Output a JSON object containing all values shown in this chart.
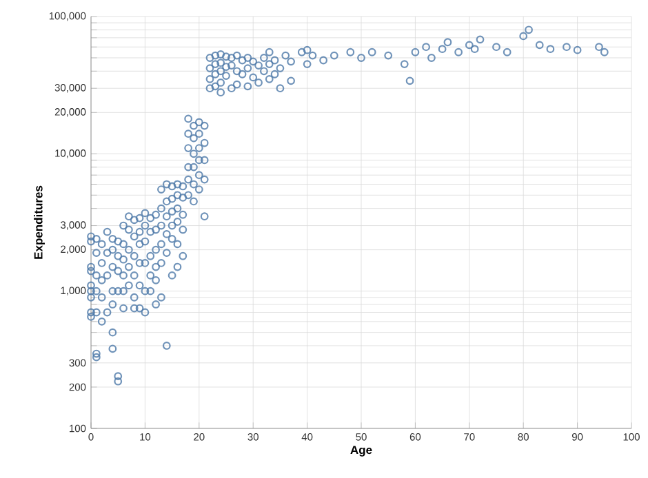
{
  "chart_data": {
    "type": "scatter",
    "xlabel": "Age",
    "ylabel": "Expenditures",
    "log": "y",
    "grid": true,
    "marker": "circle",
    "color": "#4c78a8",
    "xlim": [
      0,
      100
    ],
    "xticks": [
      0,
      10,
      20,
      30,
      40,
      50,
      60,
      70,
      80,
      90,
      100
    ],
    "ylim": [
      100,
      100000
    ],
    "yticks": [
      100,
      200,
      300,
      {
        "value": 400,
        "label": null
      },
      {
        "value": 500,
        "label": null
      },
      {
        "value": 600,
        "label": null
      },
      {
        "value": 700,
        "label": null
      },
      {
        "value": 800,
        "label": null
      },
      {
        "value": 900,
        "label": null
      },
      {
        "value": 1000,
        "label": "1,000"
      },
      {
        "value": 2000,
        "label": "2,000"
      },
      {
        "value": 3000,
        "label": "3,000"
      },
      {
        "value": 4000,
        "label": null
      },
      {
        "value": 5000,
        "label": null
      },
      {
        "value": 6000,
        "label": null
      },
      {
        "value": 7000,
        "label": null
      },
      {
        "value": 8000,
        "label": null
      },
      {
        "value": 9000,
        "label": null
      },
      {
        "value": 10000,
        "label": "10,000"
      },
      {
        "value": 20000,
        "label": "20,000"
      },
      {
        "value": 30000,
        "label": "30,000"
      },
      {
        "value": 40000,
        "label": null
      },
      {
        "value": 50000,
        "label": null
      },
      {
        "value": 60000,
        "label": null
      },
      {
        "value": 70000,
        "label": null
      },
      {
        "value": 80000,
        "label": null
      },
      {
        "value": 90000,
        "label": null
      },
      {
        "value": 100000,
        "label": "100,000"
      }
    ],
    "x": [
      0,
      0,
      0,
      0,
      0,
      0,
      0,
      0,
      0,
      1,
      1,
      1,
      1,
      1,
      1,
      1,
      2,
      2,
      2,
      2,
      2,
      3,
      3,
      3,
      3,
      4,
      4,
      4,
      4,
      4,
      4,
      4,
      5,
      5,
      5,
      5,
      5,
      5,
      6,
      6,
      6,
      6,
      6,
      6,
      7,
      7,
      7,
      7,
      7,
      8,
      8,
      8,
      8,
      8,
      8,
      9,
      9,
      9,
      9,
      9,
      9,
      10,
      10,
      10,
      10,
      10,
      10,
      11,
      11,
      11,
      11,
      11,
      12,
      12,
      12,
      12,
      12,
      12,
      13,
      13,
      13,
      13,
      13,
      13,
      14,
      14,
      14,
      14,
      14,
      14,
      15,
      15,
      15,
      15,
      15,
      15,
      16,
      16,
      16,
      16,
      16,
      16,
      17,
      17,
      17,
      17,
      17,
      18,
      18,
      18,
      18,
      18,
      18,
      19,
      19,
      19,
      19,
      19,
      19,
      20,
      20,
      20,
      20,
      20,
      20,
      21,
      21,
      21,
      21,
      21,
      22,
      22,
      22,
      22,
      23,
      23,
      23,
      23,
      24,
      24,
      24,
      24,
      24,
      25,
      25,
      25,
      26,
      26,
      26,
      27,
      27,
      27,
      28,
      28,
      29,
      29,
      29,
      30,
      30,
      31,
      31,
      32,
      32,
      33,
      33,
      33,
      34,
      34,
      35,
      35,
      36,
      37,
      37,
      39,
      40,
      40,
      41,
      43,
      45,
      48,
      50,
      52,
      55,
      58,
      59,
      60,
      62,
      63,
      65,
      66,
      68,
      70,
      71,
      72,
      75,
      77,
      80,
      81,
      83,
      85,
      88,
      90,
      94,
      95
    ],
    "values": [
      2500,
      2300,
      1500,
      1400,
      1100,
      1000,
      900,
      700,
      650,
      2400,
      1300,
      1900,
      350,
      330,
      1000,
      700,
      2200,
      1600,
      1200,
      900,
      600,
      2700,
      1900,
      1300,
      700,
      2400,
      2000,
      1500,
      1000,
      800,
      500,
      380,
      240,
      220,
      2300,
      1800,
      1400,
      1000,
      3000,
      2200,
      1700,
      1300,
      1000,
      750,
      3500,
      2800,
      2000,
      1500,
      1100,
      3300,
      2500,
      1800,
      1300,
      900,
      750,
      3400,
      2700,
      2200,
      1600,
      1100,
      750,
      3700,
      3000,
      2300,
      1600,
      1000,
      700,
      3400,
      2700,
      1800,
      1300,
      1000,
      3600,
      2800,
      2000,
      1500,
      1200,
      800,
      5500,
      4000,
      3000,
      2200,
      1600,
      900,
      6000,
      4500,
      3500,
      2600,
      1900,
      400,
      5800,
      4700,
      3800,
      3000,
      2400,
      1300,
      6000,
      5000,
      4000,
      3200,
      2200,
      1500,
      5800,
      4800,
      3600,
      2800,
      1800,
      18000,
      14000,
      11000,
      8000,
      6500,
      5000,
      16000,
      13000,
      10000,
      8000,
      6000,
      4500,
      17000,
      14000,
      11000,
      9000,
      7000,
      5500,
      16000,
      12000,
      9000,
      6500,
      3500,
      50000,
      42000,
      35000,
      30000,
      52000,
      45000,
      38000,
      31000,
      53000,
      46000,
      40000,
      33000,
      28000,
      51000,
      43000,
      37000,
      50000,
      44000,
      30000,
      52000,
      40000,
      32000,
      48000,
      38000,
      50000,
      42000,
      31000,
      47000,
      36000,
      44000,
      33000,
      50000,
      40000,
      55000,
      45000,
      35000,
      48000,
      38000,
      42000,
      30000,
      52000,
      47000,
      34000,
      55000,
      57000,
      45000,
      52000,
      48000,
      52000,
      55000,
      50000,
      55000,
      52000,
      45000,
      34000,
      55000,
      60000,
      50000,
      58000,
      65000,
      55000,
      62000,
      58000,
      68000,
      60000,
      55000,
      72000,
      80000,
      62000,
      58000,
      60000,
      57000,
      60000,
      55000
    ]
  }
}
